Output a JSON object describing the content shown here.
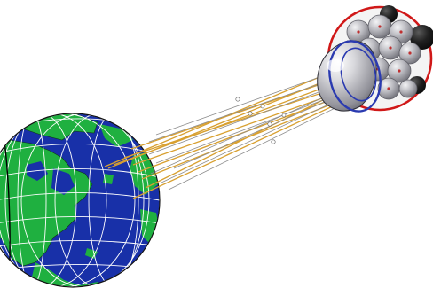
{
  "scene": {
    "subject": "satellite",
    "palette": {
      "background": "#ffffff",
      "ocean": "#1830a8",
      "land": "#1fb040",
      "graticule": "#ffffff",
      "outline": "#111111",
      "beam_gold": "#d8a030",
      "beam_thin": "#8c8c8c",
      "reflector_grey": "#c4c4c8",
      "reflector_ring": "#2a3ab0",
      "rim_red": "#d01818",
      "dark_sphere": "#1a1a1a"
    }
  }
}
